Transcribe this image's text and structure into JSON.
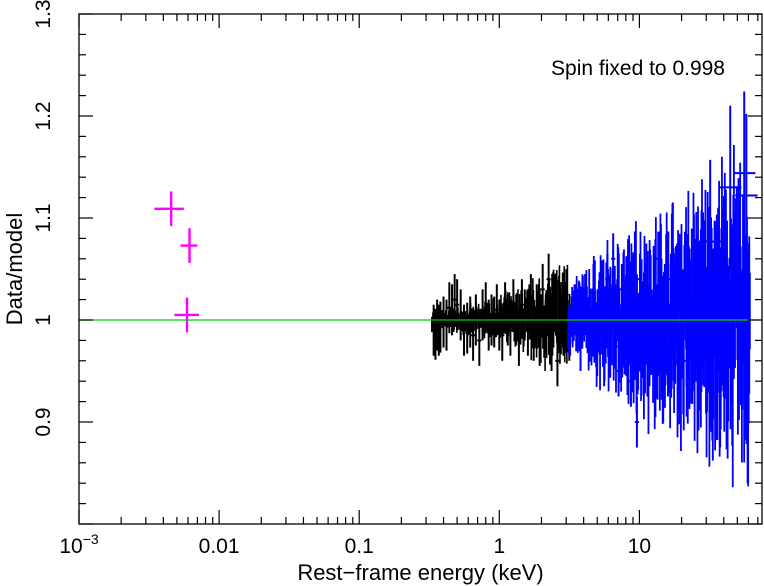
{
  "chart_data": {
    "type": "scatter",
    "title": "",
    "xlabel": "Rest−frame energy (keV)",
    "ylabel": "Data/model",
    "x_scale": "log",
    "xlim": [
      0.001,
      75
    ],
    "ylim": [
      0.8,
      1.3
    ],
    "x_tick_labels": [
      {
        "base": "10",
        "exp": "−3"
      },
      {
        "base": "0.01",
        "exp": ""
      },
      {
        "base": "0.1",
        "exp": ""
      },
      {
        "base": "1",
        "exp": ""
      },
      {
        "base": "10",
        "exp": ""
      }
    ],
    "y_tick_labels": [
      "0.9",
      "1",
      "1.1",
      "1.2",
      "1.3"
    ],
    "annotation": "Spin fixed to 0.998",
    "reference_line": {
      "y": 1.0,
      "color": "#00cc00"
    },
    "grid": false,
    "series": [
      {
        "color": "#ff00ff",
        "points": [
          {
            "x": 0.00455,
            "y": 1.109,
            "xerr": [
              0.00345,
              0.0056
            ],
            "yerr": 0.017
          },
          {
            "x": 0.00615,
            "y": 1.073,
            "xerr": [
              0.0053,
              0.007
            ],
            "yerr": 0.017
          },
          {
            "x": 0.0059,
            "y": 1.005,
            "xerr": [
              0.0048,
              0.0072
            ],
            "yerr": 0.017
          }
        ]
      },
      {
        "color": "#000000",
        "range": [
          0.33,
          3.2
        ],
        "points": [
          {
            "x": 0.34,
            "y": 0.99
          },
          {
            "x": 0.35,
            "y": 0.986
          },
          {
            "x": 0.36,
            "y": 0.995
          },
          {
            "x": 0.37,
            "y": 0.99
          },
          {
            "x": 0.38,
            "y": 0.993
          },
          {
            "x": 0.4,
            "y": 0.998
          },
          {
            "x": 0.42,
            "y": 0.995
          },
          {
            "x": 0.44,
            "y": 1.012
          },
          {
            "x": 0.46,
            "y": 1.01
          },
          {
            "x": 0.48,
            "y": 1.02
          },
          {
            "x": 0.5,
            "y": 1.015
          },
          {
            "x": 0.53,
            "y": 1.005
          },
          {
            "x": 0.56,
            "y": 0.99
          },
          {
            "x": 0.59,
            "y": 0.992
          },
          {
            "x": 0.62,
            "y": 0.998
          },
          {
            "x": 0.65,
            "y": 0.985
          },
          {
            "x": 0.68,
            "y": 1.0
          },
          {
            "x": 0.72,
            "y": 0.98
          },
          {
            "x": 0.76,
            "y": 1.005
          },
          {
            "x": 0.8,
            "y": 1.012
          },
          {
            "x": 0.84,
            "y": 0.995
          },
          {
            "x": 0.88,
            "y": 1.0
          },
          {
            "x": 0.92,
            "y": 0.998
          },
          {
            "x": 0.96,
            "y": 1.01
          },
          {
            "x": 1.0,
            "y": 0.995
          },
          {
            "x": 1.05,
            "y": 0.985
          },
          {
            "x": 1.1,
            "y": 1.012
          },
          {
            "x": 1.15,
            "y": 1.0
          },
          {
            "x": 1.2,
            "y": 0.99
          },
          {
            "x": 1.26,
            "y": 1.015
          },
          {
            "x": 1.32,
            "y": 1.0
          },
          {
            "x": 1.38,
            "y": 0.98
          },
          {
            "x": 1.45,
            "y": 1.015
          },
          {
            "x": 1.52,
            "y": 1.005
          },
          {
            "x": 1.6,
            "y": 0.99
          },
          {
            "x": 1.68,
            "y": 1.02
          },
          {
            "x": 1.76,
            "y": 0.985
          },
          {
            "x": 1.85,
            "y": 1.01
          },
          {
            "x": 1.94,
            "y": 0.98
          },
          {
            "x": 2.04,
            "y": 1.03
          },
          {
            "x": 2.14,
            "y": 0.995
          },
          {
            "x": 2.25,
            "y": 1.04
          },
          {
            "x": 2.36,
            "y": 0.975
          },
          {
            "x": 2.48,
            "y": 1.02
          },
          {
            "x": 2.6,
            "y": 0.96
          },
          {
            "x": 2.73,
            "y": 1.01
          },
          {
            "x": 2.87,
            "y": 0.99
          },
          {
            "x": 3.01,
            "y": 1.025
          },
          {
            "x": 3.16,
            "y": 0.985
          }
        ]
      },
      {
        "color": "#0000ff",
        "range": [
          3.1,
          62
        ],
        "points": [
          {
            "x": 3.2,
            "y": 0.99
          },
          {
            "x": 3.5,
            "y": 1.01
          },
          {
            "x": 3.8,
            "y": 0.975
          },
          {
            "x": 4.1,
            "y": 1.02
          },
          {
            "x": 4.4,
            "y": 0.985
          },
          {
            "x": 4.7,
            "y": 1.03
          },
          {
            "x": 5.0,
            "y": 0.97
          },
          {
            "x": 5.3,
            "y": 1.015
          },
          {
            "x": 5.6,
            "y": 0.96
          },
          {
            "x": 5.9,
            "y": 1.04
          },
          {
            "x": 6.2,
            "y": 0.98
          },
          {
            "x": 6.5,
            "y": 1.06
          },
          {
            "x": 6.8,
            "y": 1.01
          },
          {
            "x": 7.1,
            "y": 0.95
          },
          {
            "x": 7.5,
            "y": 1.03
          },
          {
            "x": 7.9,
            "y": 0.99
          },
          {
            "x": 8.3,
            "y": 1.02
          },
          {
            "x": 8.7,
            "y": 0.94
          },
          {
            "x": 9.1,
            "y": 1.01
          },
          {
            "x": 9.6,
            "y": 0.9
          },
          {
            "x": 10.1,
            "y": 1.04
          },
          {
            "x": 10.6,
            "y": 0.97
          },
          {
            "x": 11.2,
            "y": 1.05
          },
          {
            "x": 11.8,
            "y": 0.96
          },
          {
            "x": 12.4,
            "y": 1.0
          },
          {
            "x": 13.0,
            "y": 0.93
          },
          {
            "x": 13.7,
            "y": 1.06
          },
          {
            "x": 14.4,
            "y": 0.98
          },
          {
            "x": 15.2,
            "y": 1.03
          },
          {
            "x": 16.0,
            "y": 0.95
          },
          {
            "x": 16.8,
            "y": 1.04
          },
          {
            "x": 17.7,
            "y": 0.97
          },
          {
            "x": 18.6,
            "y": 1.05
          },
          {
            "x": 19.6,
            "y": 0.98
          },
          {
            "x": 20.6,
            "y": 1.02
          },
          {
            "x": 21.7,
            "y": 0.96
          },
          {
            "x": 22.8,
            "y": 1.045
          },
          {
            "x": 24.0,
            "y": 1.0
          },
          {
            "x": 25.3,
            "y": 1.04
          },
          {
            "x": 26.6,
            "y": 0.99
          },
          {
            "x": 28.0,
            "y": 1.03
          },
          {
            "x": 29.5,
            "y": 1.0
          },
          {
            "x": 32.0,
            "y": 1.077
          },
          {
            "x": 36.5,
            "y": 1.03
          },
          {
            "x": 38.5,
            "y": 1.01
          },
          {
            "x": 44.5,
            "y": 1.13
          },
          {
            "x": 46.0,
            "y": 1.012
          },
          {
            "x": 56.0,
            "y": 1.144
          },
          {
            "x": 58.0,
            "y": 1.122
          }
        ]
      }
    ]
  }
}
